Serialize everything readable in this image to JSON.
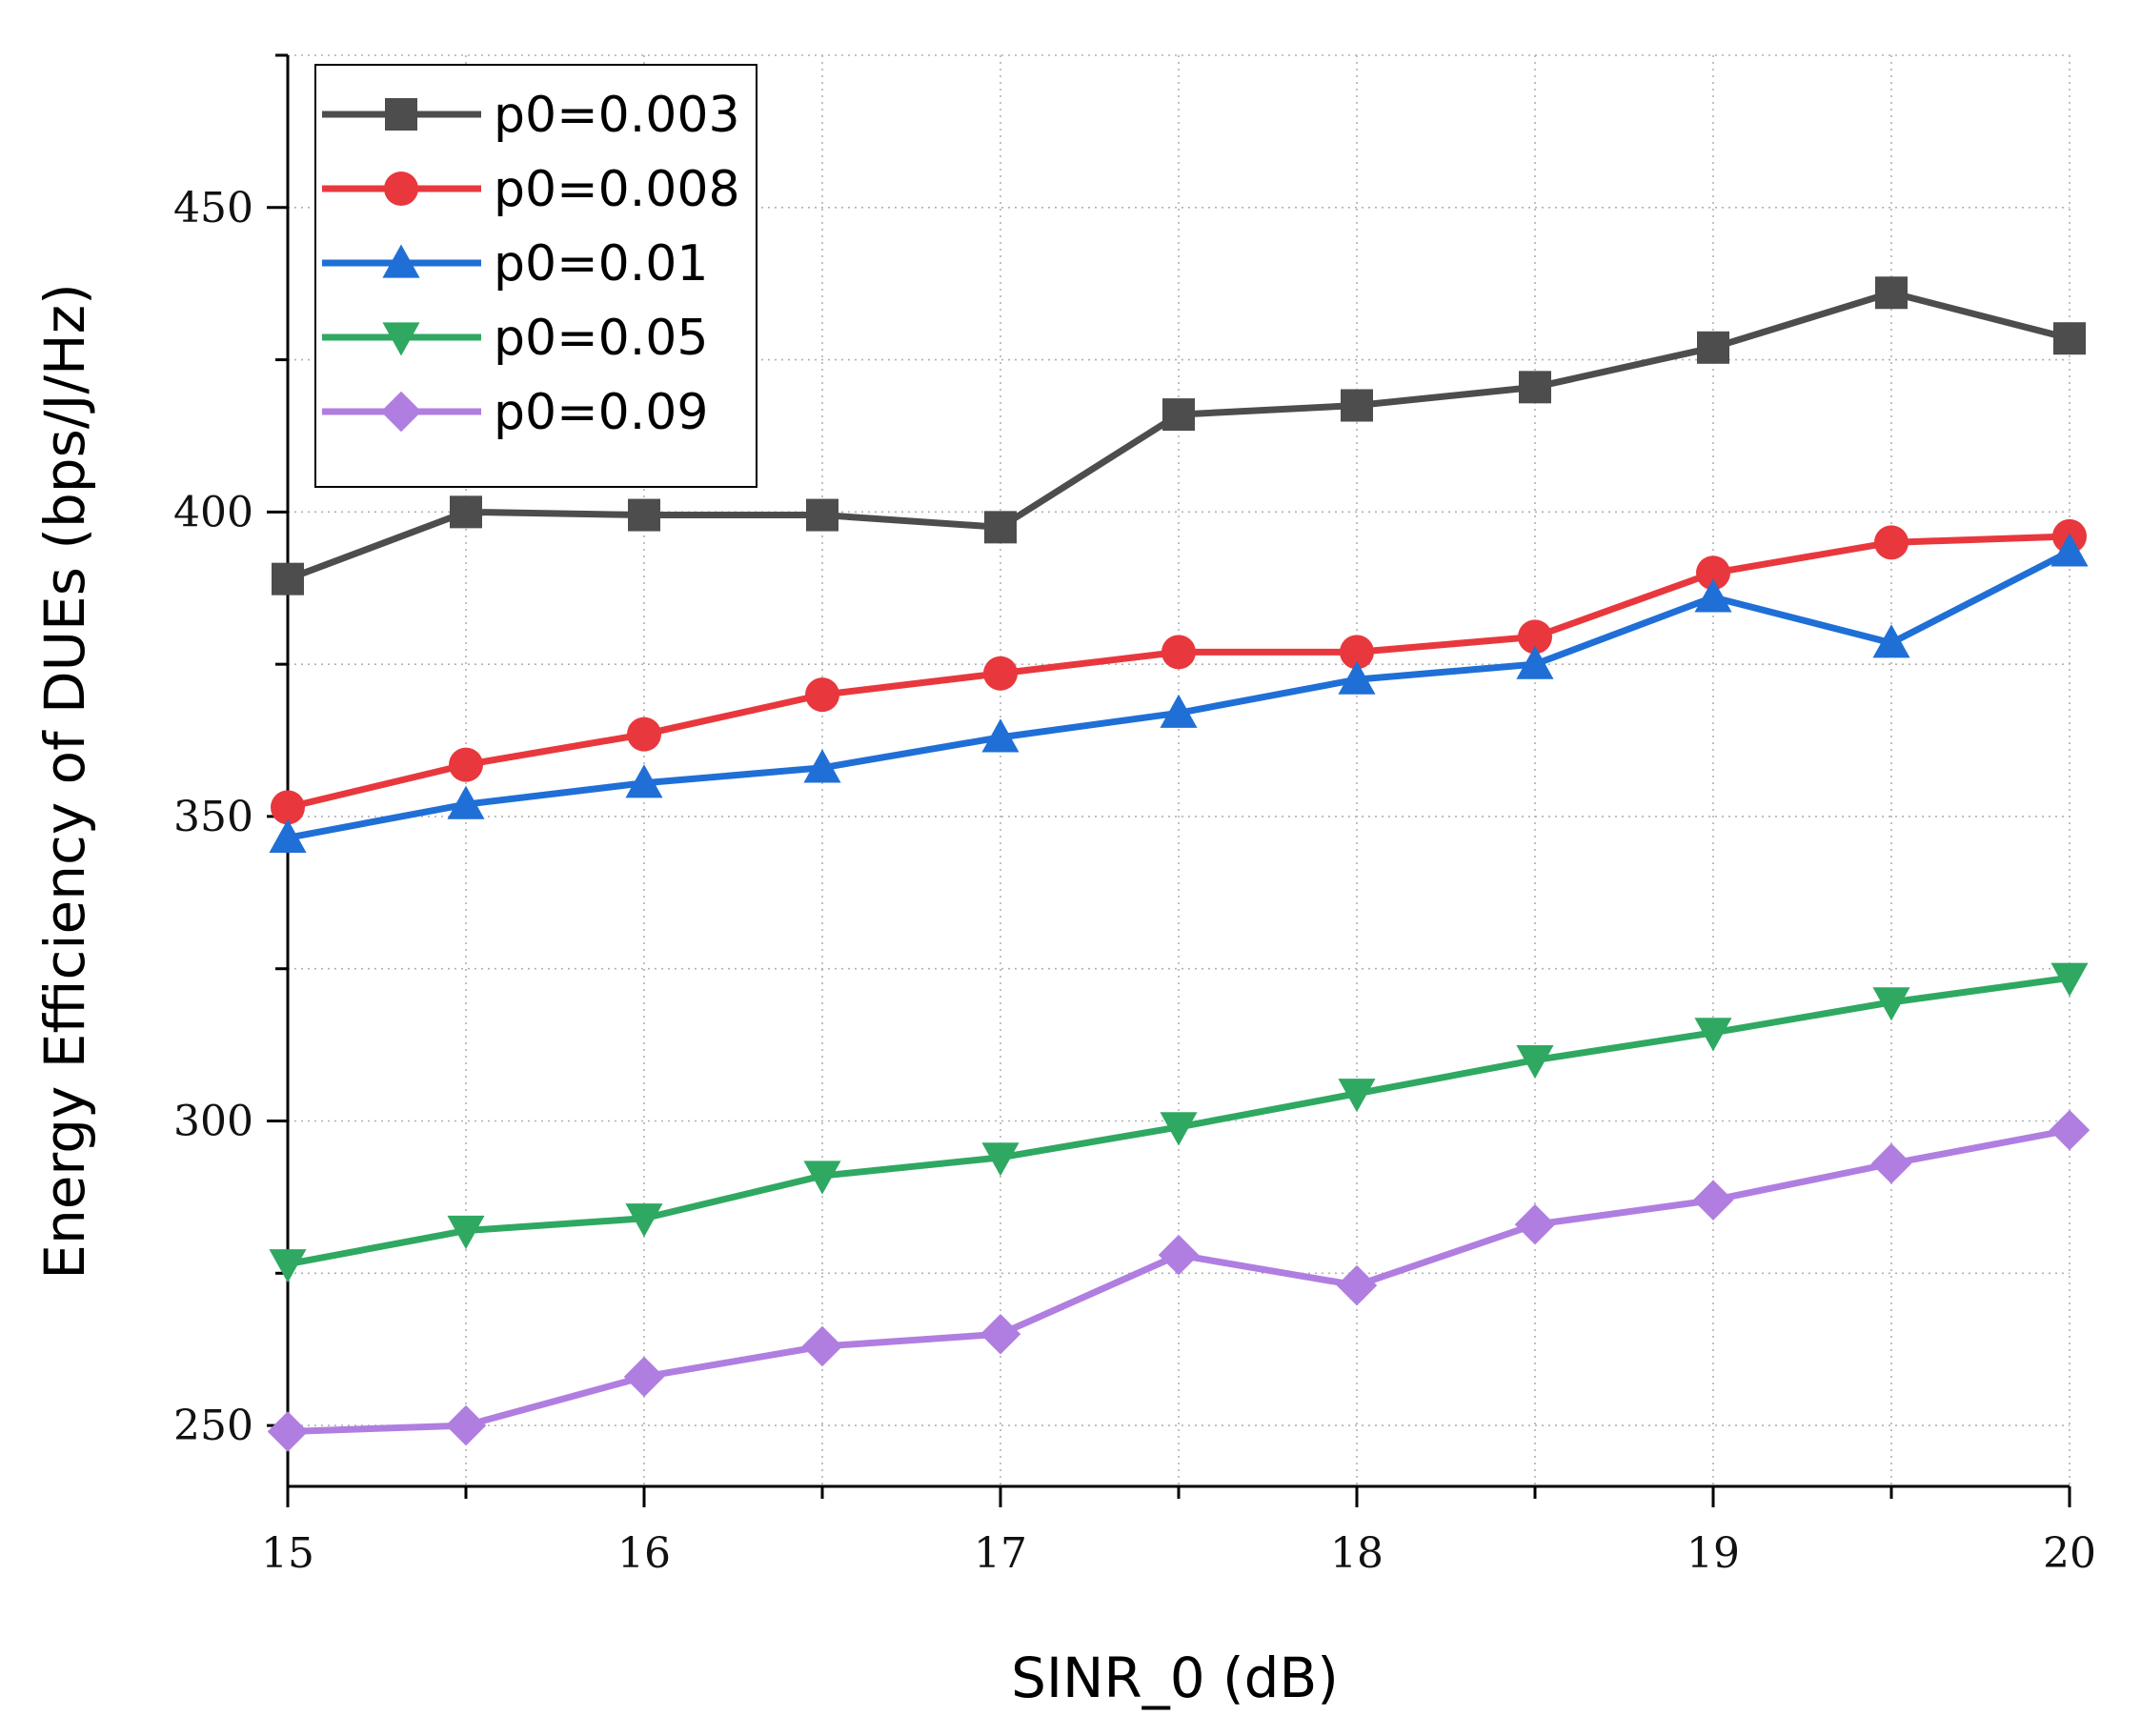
{
  "chart_data": {
    "type": "line",
    "title": "",
    "xlabel": "SINR_0 (dB)",
    "ylabel": "Energy Efficiency of DUEs (bps/J/Hz)",
    "xlim": [
      15,
      20
    ],
    "ylim": [
      240,
      475
    ],
    "xticks": [
      15,
      16,
      17,
      18,
      19,
      20
    ],
    "yticks": [
      250,
      300,
      350,
      400,
      450
    ],
    "grid": true,
    "legend_position": "top-left",
    "x": [
      15,
      15.5,
      16,
      16.5,
      17,
      17.5,
      18,
      18.5,
      19,
      19.5,
      20
    ],
    "series": [
      {
        "name": "p0=0.003",
        "color": "#4d4d4d",
        "marker": "square",
        "values": [
          389,
          400,
          399.5,
          399.5,
          397.5,
          416,
          417.5,
          420.5,
          427,
          436,
          428.5
        ]
      },
      {
        "name": "p0=0.008",
        "color": "#e8383d",
        "marker": "circle",
        "values": [
          351.5,
          358.5,
          363.5,
          370,
          373.5,
          377,
          377,
          379.5,
          390,
          395,
          396
        ]
      },
      {
        "name": "p0=0.01",
        "color": "#1f6fd6",
        "marker": "triangle-up",
        "values": [
          346.5,
          352,
          355.5,
          358,
          363,
          367,
          372.5,
          375,
          386,
          378.5,
          393.5
        ]
      },
      {
        "name": "p0=0.05",
        "color": "#2fa862",
        "marker": "triangle-down",
        "values": [
          276.5,
          282,
          284,
          291,
          294,
          299,
          304.5,
          310,
          314.5,
          319.5,
          323.5
        ]
      },
      {
        "name": "p0=0.09",
        "color": "#b07ee0",
        "marker": "diamond",
        "values": [
          249,
          250,
          258,
          263,
          265,
          278,
          273,
          283,
          287,
          293,
          298.5
        ]
      }
    ]
  }
}
